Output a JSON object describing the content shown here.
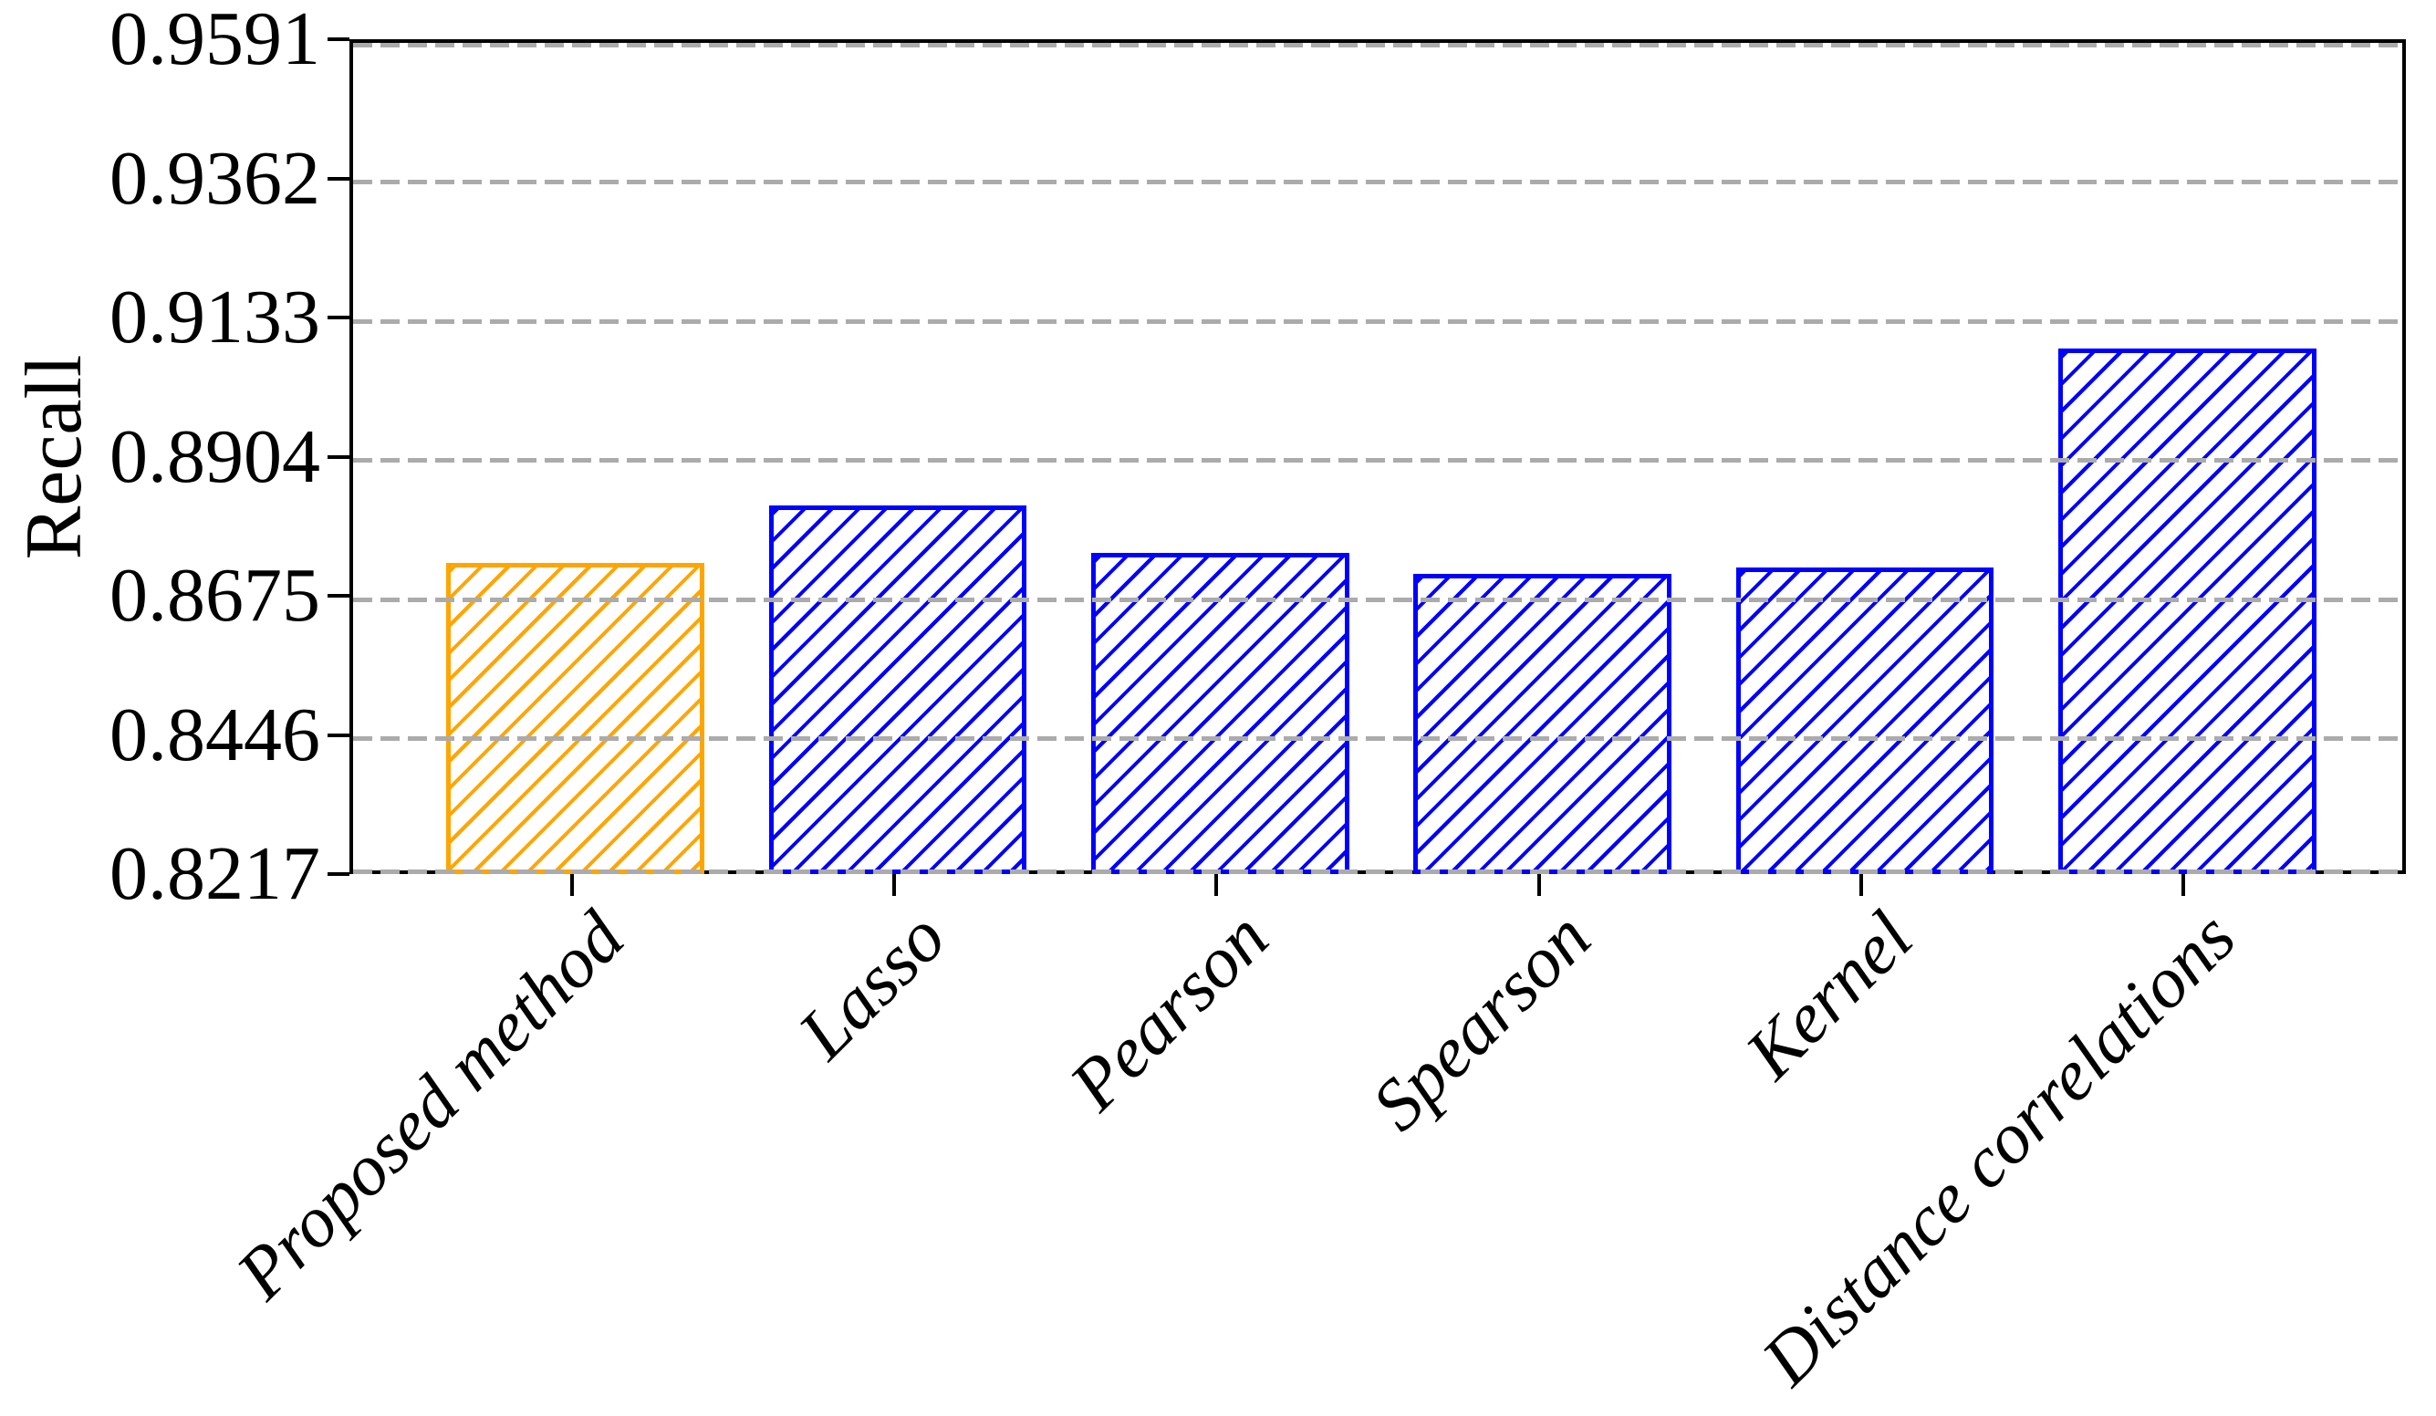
{
  "figure": {
    "background": "#ffffff"
  },
  "chart_data": {
    "type": "bar",
    "title": "",
    "xlabel": "",
    "ylabel": "Recall",
    "categories": [
      "Proposed method",
      "Lasso",
      "Pearson",
      "Spearson",
      "Kernel",
      "Distance correlations"
    ],
    "values": [
      0.8735,
      0.883,
      0.8752,
      0.8717,
      0.8728,
      0.9088
    ],
    "bar_colors": [
      "#FFA500",
      "#0000FF",
      "#0000FF",
      "#0000FF",
      "#0000FF",
      "#0000FF"
    ],
    "highlight_color": "#FFA500",
    "series_color": "#0000FF",
    "hatch": "//",
    "bar_fill": "none",
    "ylim": [
      0.8217,
      0.9591
    ],
    "yticks": [
      0.9591,
      0.9362,
      0.9133,
      0.8904,
      0.8675,
      0.8446,
      0.8217
    ],
    "ytick_labels": [
      "0.9591",
      "0.9362",
      "0.9133",
      "0.8904",
      "0.8675",
      "0.8446",
      "0.8217"
    ],
    "xlim": [
      -0.69,
      5.69
    ],
    "bar_width_fraction": 0.8,
    "xtick_label_rotation_deg": 45,
    "grid": "horizontal dashed",
    "gridline_color": "#ABABAB",
    "axis_color": "#000000",
    "text_color": "#000000",
    "legend": "none"
  }
}
